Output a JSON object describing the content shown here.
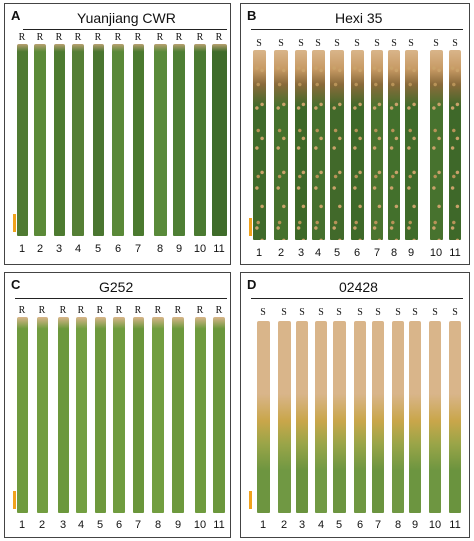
{
  "panels": [
    {
      "label": "A",
      "title": "Yuanjiang CWR",
      "marks": [
        "R",
        "R",
        "R",
        "R",
        "R",
        "R",
        "R",
        "R",
        "R",
        "R",
        "R"
      ],
      "numbers": [
        "1",
        "2",
        "3",
        "4",
        "5",
        "6",
        "7",
        "8",
        "9",
        "10",
        "11"
      ],
      "leaf_colors": [
        "#4f7a32",
        "#5b8a38",
        "#4d7b30",
        "#557f35",
        "#4a7630",
        "#5a8938",
        "#4b7a2f",
        "#598a3a",
        "#4e7f34",
        "#4a7a31",
        "#3f6c2a"
      ],
      "reaction": "resistant"
    },
    {
      "label": "B",
      "title": "Hexi 35",
      "marks": [
        "S",
        "S",
        "S",
        "S",
        "S",
        "S",
        "S",
        "S",
        "S",
        "S",
        "S"
      ],
      "numbers": [
        "1",
        "2",
        "3",
        "4",
        "5",
        "6",
        "7",
        "8",
        "9",
        "10",
        "11"
      ],
      "leaf_colors": [
        "#3f6a2a",
        "#45712d",
        "#3d6828",
        "#46702e",
        "#41692a",
        "#3e6929",
        "#4a742f",
        "#43702c",
        "#3f6b2a",
        "#47722e",
        "#3e6829"
      ],
      "reaction": "susceptible"
    },
    {
      "label": "C",
      "title": "G252",
      "marks": [
        "R",
        "R",
        "R",
        "R",
        "R",
        "R",
        "R",
        "R",
        "R",
        "R",
        "R"
      ],
      "numbers": [
        "1",
        "2",
        "3",
        "4",
        "5",
        "6",
        "7",
        "8",
        "9",
        "10",
        "11"
      ],
      "leaf_colors": [
        "#6f9a3e",
        "#729d40",
        "#6c983c",
        "#739f41",
        "#6e993d",
        "#709c3f",
        "#6a963b",
        "#729e40",
        "#6d993d",
        "#6f9b3e",
        "#6b973c"
      ],
      "reaction": "resistant"
    },
    {
      "label": "D",
      "title": "02428",
      "marks": [
        "S",
        "S",
        "S",
        "S",
        "S",
        "S",
        "S",
        "S",
        "S",
        "S",
        "S"
      ],
      "numbers": [
        "1",
        "2",
        "3",
        "4",
        "5",
        "6",
        "7",
        "8",
        "9",
        "10",
        "11"
      ],
      "leaf_colors": [
        "#6d9540",
        "#709843",
        "#6a933e",
        "#719a44",
        "#6c9540",
        "#6f9742",
        "#6b943f",
        "#709843",
        "#6c9540",
        "#6e9641",
        "#6a933e"
      ],
      "reaction": "susceptible"
    }
  ],
  "colors": {
    "scale_bar": "#f0a21c",
    "lesion_tan": "#d9b58a",
    "chlorosis": "#c9a64a"
  }
}
